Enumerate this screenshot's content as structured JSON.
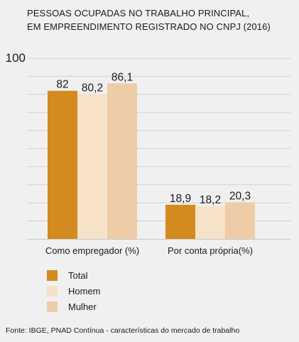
{
  "title_lines": [
    "PESSOAS OCUPADAS NO TRABALHO PRINCIPAL,",
    "EM EMPREENDIMENTO REGISTRADO NO CNPJ (2016)"
  ],
  "source": "Fonte: IBGE, PNAD Contínua - características do mercado de trabalho",
  "chart_data": {
    "type": "bar",
    "categories": [
      "Como empregador (%)",
      "Por conta própria(%)"
    ],
    "series": [
      {
        "name": "Total",
        "values": [
          82,
          18.9
        ],
        "labels": [
          "82",
          "18,9"
        ],
        "color": "#d38a1f"
      },
      {
        "name": "Homem",
        "values": [
          80.2,
          18.2
        ],
        "labels": [
          "80,2",
          "18,2"
        ],
        "color": "#f6e2c9"
      },
      {
        "name": "Mulher",
        "values": [
          86.1,
          20.3
        ],
        "labels": [
          "86,1",
          "20,3"
        ],
        "color": "#efcca8"
      }
    ],
    "ylim": [
      0,
      100
    ],
    "y_tick_labels": [
      "100"
    ],
    "grid": true,
    "legend_placement": "bottom-left"
  }
}
